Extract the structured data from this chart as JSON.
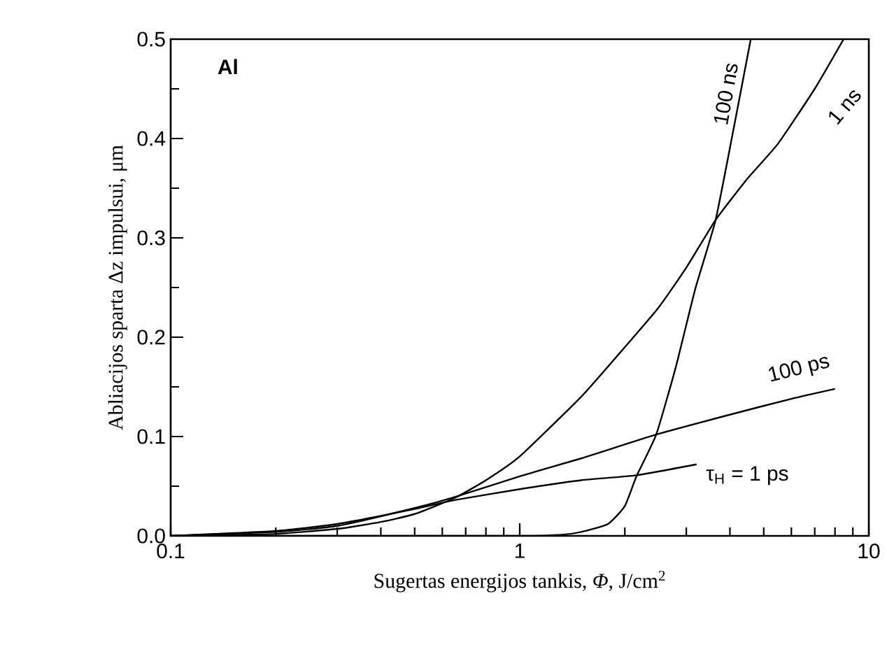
{
  "chart_data": {
    "type": "line",
    "xlabel": "Sugertas energijos tankis, *Φ*, J/cm$^{2}$",
    "ylabel": "Abliacijos sparta Δz impulsui, μm",
    "annotations": [
      "Al"
    ],
    "log": "x",
    "xlim": [
      0.1,
      10
    ],
    "ylim": [
      0,
      0.5
    ],
    "xticks": [
      0.1,
      1,
      10
    ],
    "yticks": [
      {
        "value": 0,
        "label": "0.0"
      },
      0.1,
      0.2,
      0.3,
      0.4,
      0.5
    ],
    "marker": "none",
    "line_style": "solid",
    "series": [
      {
        "name": "τ$_{H}$ = 1 ps",
        "color": "#000000",
        "x": [
          0.1,
          0.2,
          0.3,
          0.5,
          0.65,
          1,
          1.5,
          2.16,
          3.21
        ],
        "values": [
          0,
          0.005,
          0.012,
          0.027,
          0.036,
          0.047,
          0.056,
          0.061,
          0.072
        ]
      },
      {
        "name": "100 ps",
        "color": "#000000",
        "x": [
          0.1,
          0.2,
          0.3,
          0.5,
          0.65,
          1,
          1.5,
          2.46,
          4,
          6,
          8
        ],
        "values": [
          0,
          0.004,
          0.01,
          0.028,
          0.039,
          0.06,
          0.078,
          0.102,
          0.122,
          0.138,
          0.148
        ]
      },
      {
        "name": "1 ns",
        "color": "#000000",
        "x": [
          0.1,
          0.15,
          0.2,
          0.3,
          0.4,
          0.5,
          0.65,
          0.8,
          1,
          1.5,
          2,
          2.5,
          3,
          3.64,
          4.5,
          5.5,
          7,
          8.47
        ],
        "values": [
          0,
          0.001,
          0.002,
          0.007,
          0.014,
          0.022,
          0.038,
          0.056,
          0.08,
          0.14,
          0.19,
          0.23,
          0.27,
          0.318,
          0.36,
          0.395,
          0.45,
          0.5
        ]
      },
      {
        "name": "100 ns",
        "color": "#000000",
        "x": [
          0.1,
          1,
          1.3,
          1.5,
          1.79,
          2,
          2.16,
          2.46,
          2.8,
          3.18,
          3.64,
          4.1,
          4.59
        ],
        "values": [
          0,
          0,
          0.001,
          0.004,
          0.012,
          0.03,
          0.06,
          0.102,
          0.17,
          0.248,
          0.318,
          0.41,
          0.5
        ]
      }
    ]
  }
}
